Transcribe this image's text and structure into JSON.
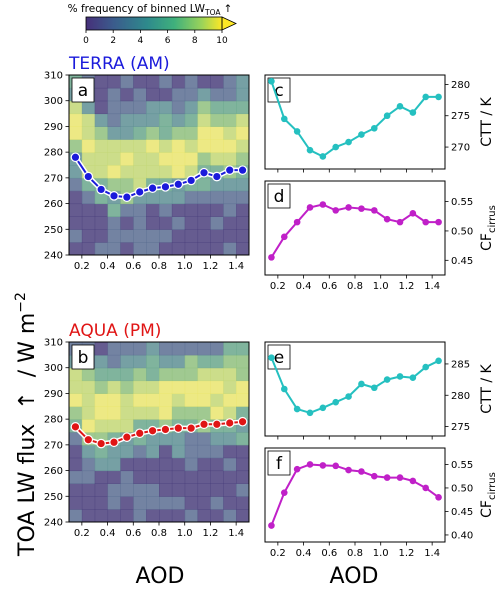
{
  "colorbar": {
    "title_main": "% frequency of binned LW",
    "title_sub": "TOA",
    "title_arrow": "↑",
    "ticks": [
      "0",
      "2",
      "4",
      "6",
      "8",
      "10"
    ],
    "range": [
      0,
      10
    ],
    "colors": [
      "#46307a",
      "#3b5b8c",
      "#2e8a8c",
      "#3fb07c",
      "#9ad35a",
      "#fde725"
    ]
  },
  "shared_labels": {
    "ylabel_main": "TOA LW flux",
    "ylabel_arrow": "↑",
    "ylabel_unit": "/ W m",
    "ylabel_unit_sup": "−2",
    "xlabel_left": "AOD",
    "xlabel_right": "AOD"
  },
  "chart_data": [
    {
      "id": "a",
      "type": "heatmap",
      "title": "TERRA (AM)",
      "title_color": "#1a1adb",
      "panel_label": "a",
      "ylim": [
        240,
        310
      ],
      "yticks": [
        "240",
        "250",
        "260",
        "270",
        "280",
        "290",
        "300",
        "310"
      ],
      "xlim": [
        0.1,
        1.5
      ],
      "xticks": [
        "0.2",
        "0.4",
        "0.6",
        "0.8",
        "1.0",
        "1.2",
        "1.4"
      ],
      "line_color": "#1a1adb",
      "x": [
        0.15,
        0.25,
        0.35,
        0.45,
        0.55,
        0.65,
        0.75,
        0.85,
        0.95,
        1.05,
        1.15,
        1.25,
        1.35,
        1.45
      ],
      "y": [
        278,
        270.5,
        265.5,
        263,
        262.5,
        264.5,
        266,
        266.5,
        267.5,
        269,
        272,
        270.5,
        273,
        273
      ]
    },
    {
      "id": "b",
      "type": "heatmap",
      "title": "AQUA (PM)",
      "title_color": "#e01515",
      "panel_label": "b",
      "ylim": [
        240,
        310
      ],
      "yticks": [
        "240",
        "250",
        "260",
        "270",
        "280",
        "290",
        "300",
        "310"
      ],
      "xlim": [
        0.1,
        1.5
      ],
      "xticks": [
        "0.2",
        "0.4",
        "0.6",
        "0.8",
        "1.0",
        "1.2",
        "1.4"
      ],
      "line_color": "#e01515",
      "x": [
        0.15,
        0.25,
        0.35,
        0.45,
        0.55,
        0.65,
        0.75,
        0.85,
        0.95,
        1.05,
        1.15,
        1.25,
        1.35,
        1.45
      ],
      "y": [
        277,
        272,
        270.5,
        271,
        273,
        274.5,
        275.5,
        276,
        276.5,
        276.5,
        278,
        278,
        278.5,
        279
      ]
    },
    {
      "id": "c",
      "type": "line",
      "panel_label": "c",
      "ylabel": "CTT / K",
      "ylabel_sub": "",
      "ylim": [
        266.5,
        281.5
      ],
      "yticks": [
        {
          "v": 270,
          "label": "270"
        },
        {
          "v": 275,
          "label": "275"
        },
        {
          "v": 280,
          "label": "280"
        }
      ],
      "xlim": [
        0.1,
        1.5
      ],
      "xticks": [
        "0.2",
        "0.4",
        "0.6",
        "0.8",
        "1.0",
        "1.2",
        "1.4"
      ],
      "show_xticklabels": false,
      "line_color": "#25c0c0",
      "x": [
        0.15,
        0.25,
        0.35,
        0.45,
        0.55,
        0.65,
        0.75,
        0.85,
        0.95,
        1.05,
        1.15,
        1.25,
        1.35,
        1.45
      ],
      "y": [
        280.5,
        274.5,
        272.5,
        269.5,
        268.5,
        270,
        270.8,
        272,
        273,
        275,
        276.5,
        275.5,
        278,
        278
      ]
    },
    {
      "id": "d",
      "type": "line",
      "panel_label": "d",
      "ylabel": "CF",
      "ylabel_sub": "cirrus",
      "ylim": [
        0.425,
        0.585
      ],
      "yticks": [
        {
          "v": 0.45,
          "label": "0.45"
        },
        {
          "v": 0.5,
          "label": "0.50"
        },
        {
          "v": 0.55,
          "label": "0.55"
        }
      ],
      "xlim": [
        0.1,
        1.5
      ],
      "xticks": [
        "0.2",
        "0.4",
        "0.6",
        "0.8",
        "1.0",
        "1.2",
        "1.4"
      ],
      "show_xticklabels": true,
      "line_color": "#c020c8",
      "x": [
        0.15,
        0.25,
        0.35,
        0.45,
        0.55,
        0.65,
        0.75,
        0.85,
        0.95,
        1.05,
        1.15,
        1.25,
        1.35,
        1.45
      ],
      "y": [
        0.455,
        0.49,
        0.515,
        0.54,
        0.545,
        0.535,
        0.54,
        0.538,
        0.535,
        0.52,
        0.515,
        0.53,
        0.515,
        0.515
      ]
    },
    {
      "id": "e",
      "type": "line",
      "panel_label": "e",
      "ylabel": "CTT / K",
      "ylabel_sub": "",
      "ylim": [
        273.5,
        288.5
      ],
      "yticks": [
        {
          "v": 275,
          "label": "275"
        },
        {
          "v": 280,
          "label": "280"
        },
        {
          "v": 285,
          "label": "285"
        }
      ],
      "xlim": [
        0.1,
        1.5
      ],
      "xticks": [
        "0.2",
        "0.4",
        "0.6",
        "0.8",
        "1.0",
        "1.2",
        "1.4"
      ],
      "show_xticklabels": false,
      "line_color": "#25c0c0",
      "x": [
        0.15,
        0.25,
        0.35,
        0.45,
        0.55,
        0.65,
        0.75,
        0.85,
        0.95,
        1.05,
        1.15,
        1.25,
        1.35,
        1.45
      ],
      "y": [
        286,
        281,
        277.8,
        277.2,
        278,
        278.9,
        279.8,
        281.8,
        281.2,
        282.5,
        283,
        282.8,
        284.5,
        285.5
      ]
    },
    {
      "id": "f",
      "type": "line",
      "panel_label": "f",
      "ylabel": "CF",
      "ylabel_sub": "cirrus",
      "ylim": [
        0.385,
        0.585
      ],
      "yticks": [
        {
          "v": 0.4,
          "label": "0.40"
        },
        {
          "v": 0.45,
          "label": "0.45"
        },
        {
          "v": 0.5,
          "label": "0.50"
        },
        {
          "v": 0.55,
          "label": "0.55"
        }
      ],
      "xlim": [
        0.1,
        1.5
      ],
      "xticks": [
        "0.2",
        "0.4",
        "0.6",
        "0.8",
        "1.0",
        "1.2",
        "1.4"
      ],
      "show_xticklabels": true,
      "line_color": "#c020c8",
      "x": [
        0.15,
        0.25,
        0.35,
        0.45,
        0.55,
        0.65,
        0.75,
        0.85,
        0.95,
        1.05,
        1.15,
        1.25,
        1.35,
        1.45
      ],
      "y": [
        0.42,
        0.49,
        0.54,
        0.55,
        0.548,
        0.547,
        0.538,
        0.535,
        0.525,
        0.522,
        0.522,
        0.515,
        0.5,
        0.48
      ]
    }
  ]
}
